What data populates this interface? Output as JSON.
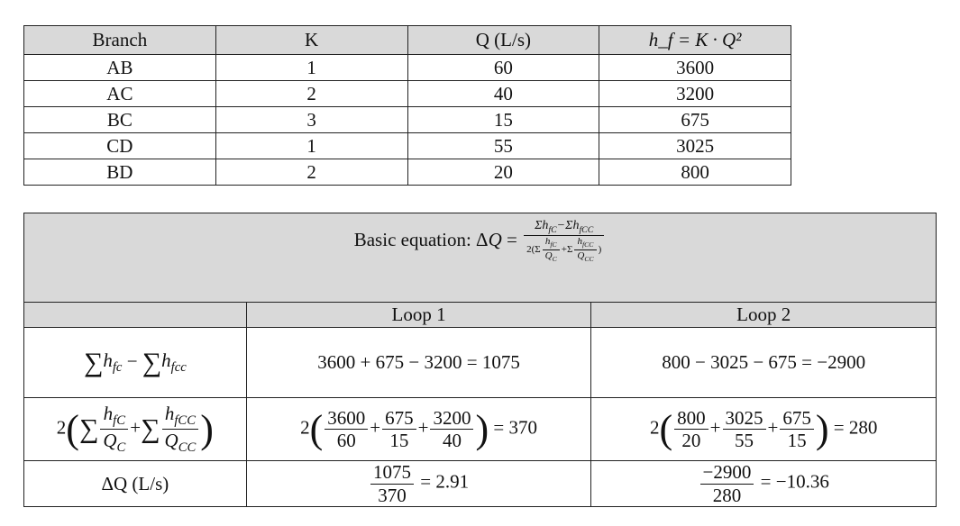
{
  "branch_table": {
    "headers": [
      "Branch",
      "K",
      "Q (L/s)",
      "h_f = K · Q²"
    ],
    "rows": [
      [
        "AB",
        "1",
        "60",
        "3600"
      ],
      [
        "AC",
        "2",
        "40",
        "3200"
      ],
      [
        "BC",
        "3",
        "15",
        "675"
      ],
      [
        "CD",
        "1",
        "55",
        "3025"
      ],
      [
        "BD",
        "2",
        "20",
        "800"
      ]
    ]
  },
  "loop_table": {
    "title": "Basic equation:",
    "loops": [
      "Loop 1",
      "Loop 2"
    ],
    "row_labels": {
      "sum_h": "Σh_fc − Σh_fcc",
      "denominator": "2(Σh_fc/Q_c + Σh_fcc/Q_cc)",
      "dq": "ΔQ (L/s)"
    },
    "loop1": {
      "sum_expr": "3600 + 675 − 3200 = 1075",
      "fracs": [
        [
          "3600",
          "60"
        ],
        [
          "675",
          "15"
        ],
        [
          "3200",
          "40"
        ]
      ],
      "den_result": "= 370",
      "dq_num": "1075",
      "dq_den": "370",
      "dq_result": "= 2.91"
    },
    "loop2": {
      "sum_expr": "800 − 3025 − 675 = −2900",
      "fracs": [
        [
          "800",
          "20"
        ],
        [
          "3025",
          "55"
        ],
        [
          "675",
          "15"
        ]
      ],
      "den_result": "= 280",
      "dq_num": "−2900",
      "dq_den": "280",
      "dq_result": "= −10.36"
    }
  }
}
